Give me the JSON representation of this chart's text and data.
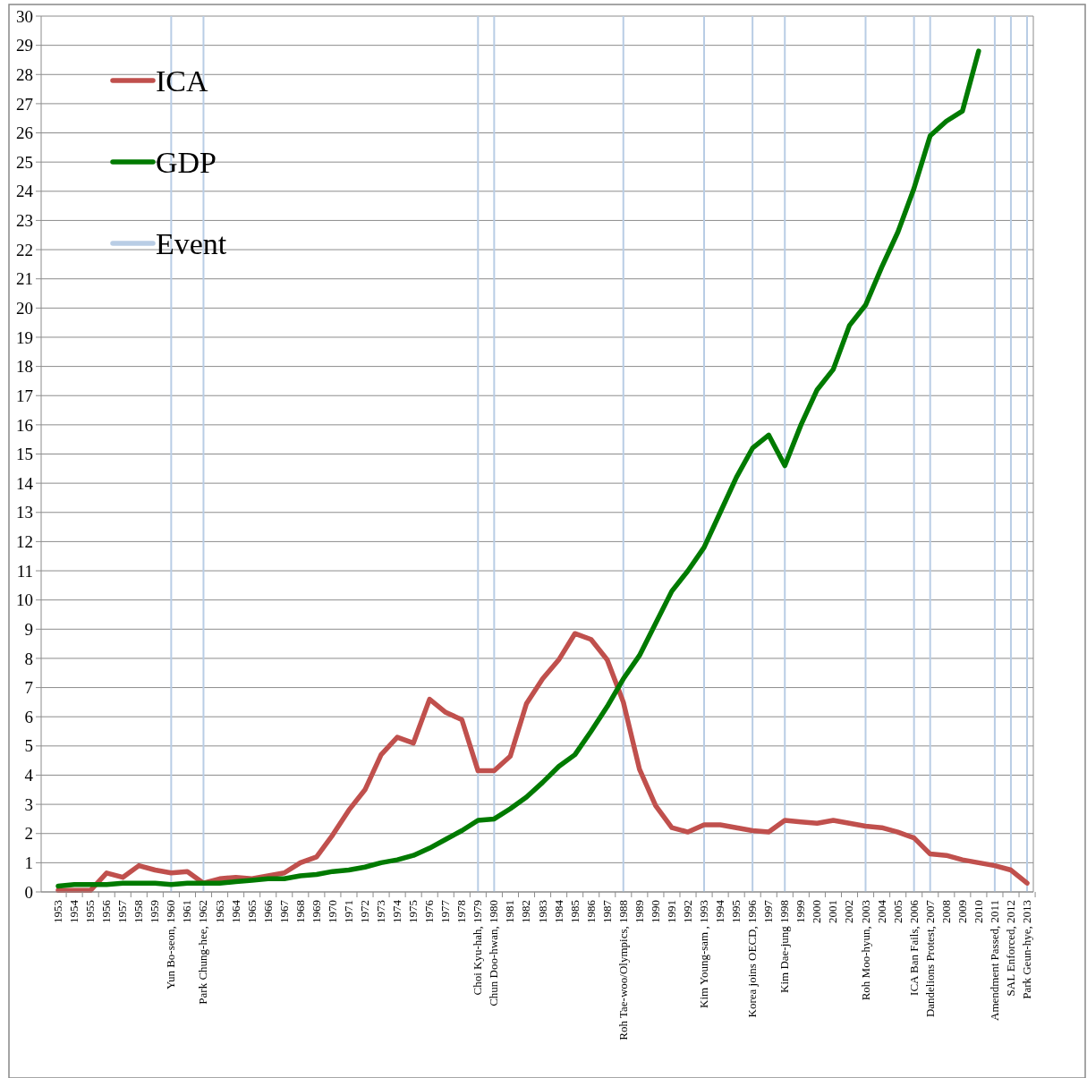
{
  "chart_data": {
    "type": "line",
    "categories": [
      "1953",
      "1954",
      "1955",
      "1956",
      "1957",
      "1958",
      "1959",
      "Yun Bo-seon, 1960",
      "1961",
      "Park Chung-hee, 1962",
      "1963",
      "1964",
      "1965",
      "1966",
      "1967",
      "1968",
      "1969",
      "1970",
      "1971",
      "1972",
      "1973",
      "1974",
      "1975",
      "1976",
      "1977",
      "1978",
      "Choi Kyu-hah, 1979",
      "Chun Doo-hwan, 1980",
      "1981",
      "1982",
      "1983",
      "1984",
      "1985",
      "1986",
      "1987",
      "Roh Tae-woo/Olympics, 1988",
      "1989",
      "1990",
      "1991",
      "1992",
      "Kim Young-sam , 1993",
      "1994",
      "1995",
      "Korea joins OECD, 1996",
      "1997",
      "Kim Dae-jung 1998",
      "1999",
      "2000",
      "2001",
      "2002",
      "Roh Moo-hyun, 2003",
      "2004",
      "2005",
      "ICA Ban Fails, 2006",
      "Dandelions Protest, 2007",
      "2008",
      "2009",
      "2010",
      "Amendment Passed, 2011",
      "SAL Enforced, 2012",
      "Park Geun-hye, 2013"
    ],
    "series": [
      {
        "name": "ICA",
        "color": "#c0504d",
        "values": [
          0.05,
          0.05,
          0.05,
          0.65,
          0.5,
          0.9,
          0.75,
          0.65,
          0.7,
          0.3,
          0.45,
          0.5,
          0.45,
          0.55,
          0.65,
          1.0,
          1.2,
          1.95,
          2.8,
          3.5,
          4.7,
          5.3,
          5.1,
          6.6,
          6.15,
          5.9,
          4.15,
          4.15,
          4.65,
          6.45,
          7.3,
          7.95,
          8.85,
          8.65,
          7.95,
          6.5,
          4.2,
          2.95,
          2.2,
          2.05,
          2.3,
          2.3,
          2.2,
          2.1,
          2.05,
          2.45,
          2.4,
          2.35,
          2.45,
          2.35,
          2.25,
          2.2,
          2.05,
          1.85,
          1.3,
          1.25,
          1.1,
          1.0,
          0.9,
          0.75,
          0.3
        ]
      },
      {
        "name": "GDP",
        "color": "#007a00",
        "values": [
          0.2,
          0.25,
          0.25,
          0.25,
          0.3,
          0.3,
          0.3,
          0.25,
          0.3,
          0.3,
          0.3,
          0.35,
          0.4,
          0.45,
          0.45,
          0.55,
          0.6,
          0.7,
          0.75,
          0.85,
          1.0,
          1.1,
          1.25,
          1.5,
          1.8,
          2.1,
          2.45,
          2.5,
          2.85,
          3.25,
          3.75,
          4.3,
          4.7,
          5.5,
          6.35,
          7.3,
          8.1,
          9.2,
          10.3,
          11.0,
          11.8,
          13.0,
          14.2,
          15.2,
          15.65,
          14.6,
          16.0,
          17.2,
          17.9,
          19.4,
          20.1,
          21.4,
          22.6,
          24.1,
          25.9,
          26.4,
          26.75,
          28.8,
          null,
          null,
          null
        ]
      },
      {
        "name": "Event",
        "type": "bar",
        "color": "#b9cde5",
        "values": [
          null,
          null,
          null,
          null,
          null,
          null,
          null,
          30,
          null,
          30,
          null,
          null,
          null,
          null,
          null,
          null,
          null,
          null,
          null,
          null,
          null,
          null,
          null,
          null,
          null,
          null,
          30,
          30,
          null,
          null,
          null,
          null,
          null,
          null,
          null,
          30,
          null,
          null,
          null,
          null,
          30,
          null,
          null,
          30,
          null,
          30,
          null,
          null,
          null,
          null,
          30,
          null,
          null,
          30,
          30,
          null,
          null,
          null,
          30,
          30,
          30
        ]
      }
    ],
    "ylim": [
      0,
      30
    ],
    "yticks": [
      0,
      1,
      2,
      3,
      4,
      5,
      6,
      7,
      8,
      9,
      10,
      11,
      12,
      13,
      14,
      15,
      16,
      17,
      18,
      19,
      20,
      21,
      22,
      23,
      24,
      25,
      26,
      27,
      28,
      29,
      30
    ],
    "grid": "y",
    "legend": "top left"
  }
}
